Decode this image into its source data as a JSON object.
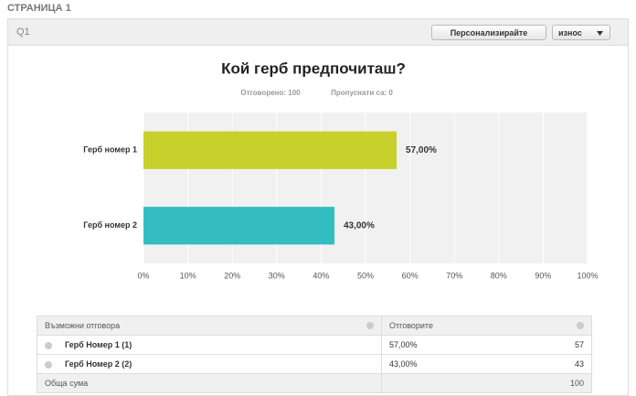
{
  "page_label": "СТРАНИЦА 1",
  "question_label": "Q1",
  "buttons": [
    "Персонализирайте",
    "износ"
  ],
  "chart_data": {
    "type": "bar",
    "orientation": "horizontal",
    "title": "Кой герб предпочиташ?",
    "subtitle": [
      "Отговорено: 100",
      "Пропуснати са: 0"
    ],
    "categories": [
      "Герб номер 1",
      "Герб номер 2"
    ],
    "values": [
      57,
      43
    ],
    "value_labels": [
      "57,00%",
      "43,00%"
    ],
    "colors": [
      "#c8d12b",
      "#33bdc0"
    ],
    "xlim": [
      0,
      100
    ],
    "xticks": [
      {
        "value": 0,
        "label": "0%"
      },
      {
        "value": 10,
        "label": "10%"
      },
      {
        "value": 20,
        "label": "20%"
      },
      {
        "value": 30,
        "label": "30%"
      },
      {
        "value": 40,
        "label": "40%"
      },
      {
        "value": 50,
        "label": "50%"
      },
      {
        "value": 60,
        "label": "60%"
      },
      {
        "value": 70,
        "label": "70%"
      },
      {
        "value": 80,
        "label": "80%"
      },
      {
        "value": 90,
        "label": "90%"
      },
      {
        "value": 100,
        "label": "100%"
      }
    ],
    "grid": true
  },
  "table": {
    "headers": [
      "Възможни отговора",
      "Отговорите"
    ],
    "rows": [
      [
        "Герб Номер 1 (1)",
        "57,00%",
        57
      ],
      [
        "Герб Номер 2 (2)",
        "43,00%",
        43
      ]
    ],
    "footer": [
      "Обща сума",
      100
    ]
  }
}
